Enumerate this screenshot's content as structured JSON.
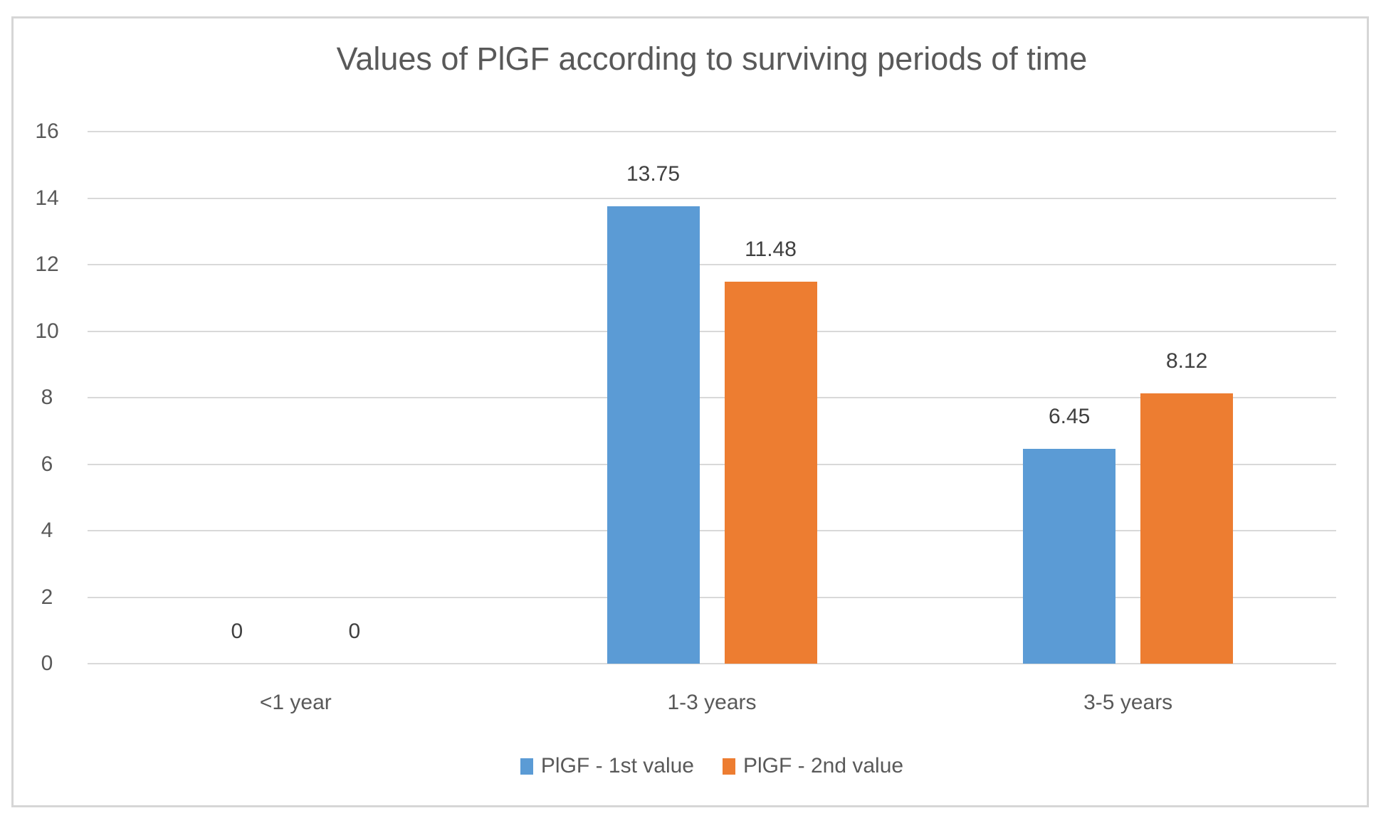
{
  "chart_data": {
    "type": "bar",
    "title": "Values of PlGF according to surviving periods of time",
    "categories": [
      "<1 year",
      "1-3 years",
      "3-5 years"
    ],
    "series": [
      {
        "name": "PlGF - 1st value",
        "color": "#5B9BD5",
        "values": [
          0,
          13.75,
          6.45
        ],
        "labels": [
          "0",
          "13.75",
          "6.45"
        ]
      },
      {
        "name": "PlGF - 2nd value",
        "color": "#ED7D31",
        "values": [
          0,
          11.48,
          8.12
        ],
        "labels": [
          "0",
          "11.48",
          "8.12"
        ]
      }
    ],
    "y_axis": {
      "min": 0,
      "max": 16,
      "step": 2,
      "ticks": [
        "0",
        "2",
        "4",
        "6",
        "8",
        "10",
        "12",
        "14",
        "16"
      ]
    },
    "grid": true,
    "legend_position": "bottom",
    "colors": {
      "gridline": "#D9D9D9",
      "frame_border": "#D6D6D6",
      "title_text": "#595959",
      "axis_text": "#595959",
      "data_label_text": "#404040"
    }
  }
}
